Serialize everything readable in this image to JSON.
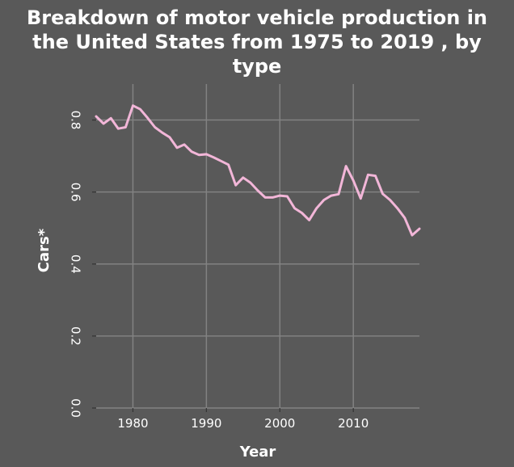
{
  "chart_data": {
    "type": "line",
    "title_lines": [
      "Breakdown of motor vehicle production in",
      "the United States from 1975 to 2019 , by",
      "type"
    ],
    "xlabel": "Year",
    "ylabel": "Cars*",
    "xlim": [
      1975,
      2019
    ],
    "ylim": [
      0.0,
      0.9
    ],
    "x_ticks": [
      1980,
      1990,
      2000,
      2010
    ],
    "y_ticks": [
      0.0,
      0.2,
      0.4,
      0.6,
      0.8
    ],
    "x_tick_labels": [
      "1980",
      "1990",
      "2000",
      "2010"
    ],
    "y_tick_labels": [
      "0.0",
      "0.2",
      "0.4",
      "0.6",
      "0.8"
    ],
    "grid": true,
    "colors": {
      "background": "#595959",
      "grid": "#828282",
      "line": "#f2b6d8",
      "text": "#ffffff"
    },
    "series": [
      {
        "x": [
          1975,
          1976,
          1977,
          1978,
          1979,
          1980,
          1981,
          1982,
          1983,
          1984,
          1985,
          1986,
          1987,
          1988,
          1989,
          1990,
          1991,
          1992,
          1993,
          1994,
          1995,
          1996,
          1997,
          1998,
          1999,
          2000,
          2001,
          2002,
          2003,
          2004,
          2005,
          2006,
          2007,
          2008,
          2009,
          2010,
          2011,
          2012,
          2013,
          2014,
          2015,
          2016,
          2017,
          2018,
          2019
        ],
        "y": [
          0.81,
          0.79,
          0.805,
          0.776,
          0.78,
          0.84,
          0.83,
          0.806,
          0.78,
          0.765,
          0.752,
          0.723,
          0.732,
          0.712,
          0.703,
          0.705,
          0.696,
          0.686,
          0.676,
          0.619,
          0.64,
          0.626,
          0.604,
          0.585,
          0.585,
          0.59,
          0.588,
          0.555,
          0.542,
          0.522,
          0.555,
          0.578,
          0.59,
          0.594,
          0.672,
          0.632,
          0.582,
          0.648,
          0.645,
          0.595,
          0.578,
          0.555,
          0.528,
          0.48,
          0.498
        ]
      }
    ]
  }
}
